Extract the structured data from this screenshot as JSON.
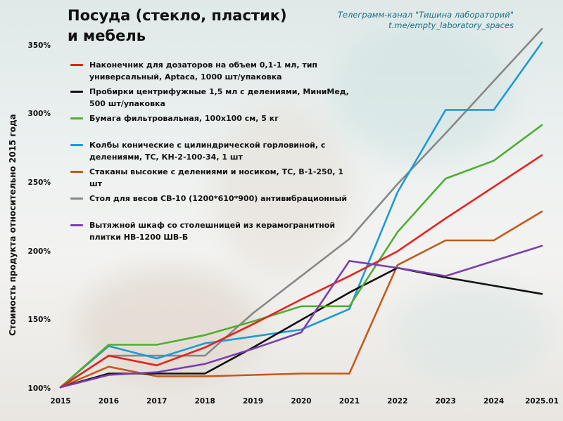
{
  "title_lines": [
    "Посуда (стекло, пластик)",
    "и мебель"
  ],
  "credit_lines": [
    "Телеграмм-канал \"Тишина лабораторий\"",
    "t.me/empty_laboratory_spaces"
  ],
  "chart_data": {
    "type": "line",
    "title": "Посуда (стекло, пластик) и мебель",
    "ylabel": "Стоимость продукта относительно 2015 года",
    "xlabel": "",
    "x": [
      "2015",
      "2016",
      "2017",
      "2018",
      "2019",
      "2020",
      "2021",
      "2022",
      "2023",
      "2024",
      "2025.01"
    ],
    "ylim": [
      100,
      360
    ],
    "yticks": [
      100,
      150,
      200,
      250,
      300,
      350
    ],
    "ytick_labels": [
      "100%",
      "150%",
      "200%",
      "250%",
      "300%",
      "350%"
    ],
    "grid": false,
    "legend_position": "top-left",
    "series": [
      {
        "name": "Наконечник для дозаторов на объем 0,1-1 мл, тип универсальный, Aptaca, 1000 шт/упаковка",
        "color": "#e8201c",
        "values": [
          101,
          124,
          117,
          130,
          147,
          165,
          182,
          200,
          224,
          247,
          270
        ]
      },
      {
        "name": "Пробирки центрифужные 1,5 мл с делениями, МиниМед, 500 шт/упаковка",
        "color": "#111111",
        "values": [
          101,
          111,
          111,
          111,
          130,
          150,
          170,
          188,
          181,
          175,
          169
        ]
      },
      {
        "name": "Бумага фильтровальная, 100х100 см, 5 кг",
        "color": "#4fae32",
        "values": [
          101,
          132,
          132,
          139,
          149,
          160,
          160,
          214,
          253,
          266,
          292
        ]
      },
      {
        "name": "Колбы конические с цилиндрической горловиной, с делениями, ТС, КН-2-100-34, 1 шт",
        "color": "#1d9ad6",
        "values": [
          101,
          131,
          122,
          133,
          138,
          143,
          158,
          243,
          303,
          303,
          352
        ]
      },
      {
        "name": "Стаканы высокие с делениями и носиком, ТС, В-1-250, 1 шт",
        "color": "#c45a1a",
        "values": [
          101,
          116,
          109,
          109,
          110,
          111,
          111,
          190,
          208,
          208,
          229
        ]
      },
      {
        "name": "Стол для весов СВ-10 (1200*610*900) антивибрационный",
        "color": "#888888",
        "values": [
          101,
          124,
          124,
          124,
          155,
          182,
          209,
          249,
          286,
          324,
          362
        ]
      },
      {
        "name": "Вытяжной шкаф со столешницей из керамогранитной плитки НВ-1200 ШВ-Б",
        "color": "#7a3fb0",
        "values": [
          101,
          110,
          112,
          118,
          129,
          141,
          193,
          188,
          182,
          193,
          204
        ]
      }
    ]
  }
}
